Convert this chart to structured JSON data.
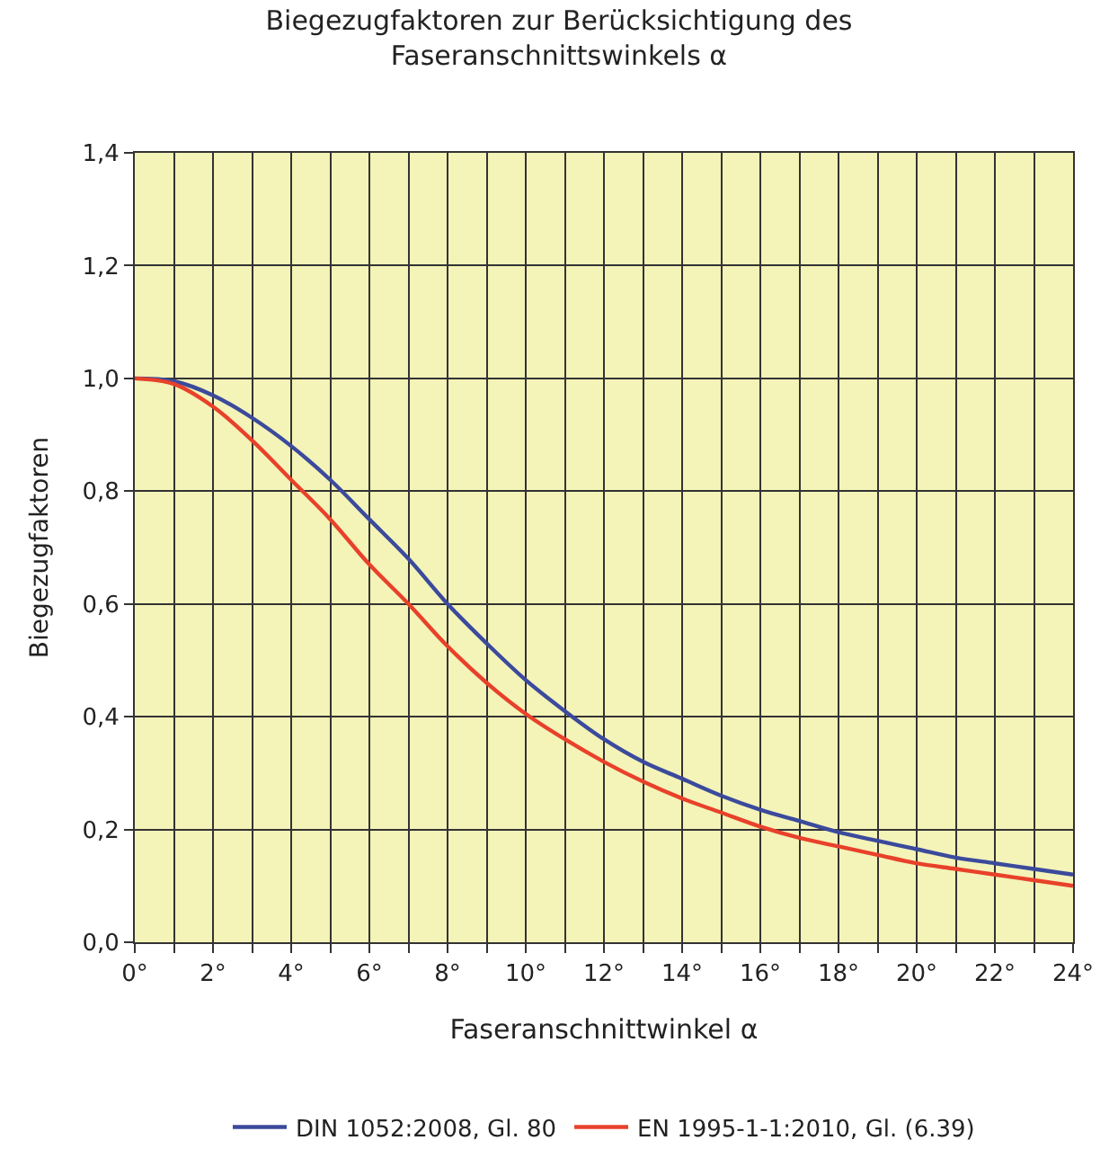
{
  "chart_data": {
    "type": "line",
    "title": "Biegezugfaktoren zur Berücksichtigung des\nFaseranschnittswinkels α",
    "xlabel": "Faseranschnittwinkel α",
    "ylabel": "Biegezugfaktoren",
    "x": [
      0,
      1,
      2,
      3,
      4,
      5,
      6,
      7,
      8,
      9,
      10,
      11,
      12,
      13,
      14,
      15,
      16,
      17,
      18,
      19,
      20,
      21,
      22,
      23,
      24
    ],
    "series": [
      {
        "name": "DIN 1052:2008, Gl. 80",
        "color": "#3b4a9c",
        "values": [
          1.0,
          0.995,
          0.97,
          0.93,
          0.88,
          0.82,
          0.75,
          0.68,
          0.6,
          0.53,
          0.465,
          0.41,
          0.36,
          0.32,
          0.29,
          0.26,
          0.235,
          0.215,
          0.195,
          0.18,
          0.165,
          0.15,
          0.14,
          0.13,
          0.12
        ]
      },
      {
        "name": "EN 1995-1-1:2010, Gl. (6.39)",
        "color": "#e8412a",
        "values": [
          1.0,
          0.99,
          0.95,
          0.89,
          0.82,
          0.75,
          0.67,
          0.6,
          0.525,
          0.46,
          0.405,
          0.36,
          0.32,
          0.285,
          0.255,
          0.23,
          0.205,
          0.185,
          0.17,
          0.155,
          0.14,
          0.13,
          0.12,
          0.11,
          0.1
        ]
      }
    ],
    "xlim": [
      0,
      24
    ],
    "xticks": [
      {
        "value": 0,
        "label": "0°"
      },
      {
        "value": 1,
        "label": null
      },
      {
        "value": 2,
        "label": "2°"
      },
      {
        "value": 3,
        "label": null
      },
      {
        "value": 4,
        "label": "4°"
      },
      {
        "value": 5,
        "label": null
      },
      {
        "value": 6,
        "label": "6°"
      },
      {
        "value": 7,
        "label": null
      },
      {
        "value": 8,
        "label": "8°"
      },
      {
        "value": 9,
        "label": null
      },
      {
        "value": 10,
        "label": "10°"
      },
      {
        "value": 11,
        "label": null
      },
      {
        "value": 12,
        "label": "12°"
      },
      {
        "value": 13,
        "label": null
      },
      {
        "value": 14,
        "label": "14°"
      },
      {
        "value": 15,
        "label": null
      },
      {
        "value": 16,
        "label": "16°"
      },
      {
        "value": 17,
        "label": null
      },
      {
        "value": 18,
        "label": "18°"
      },
      {
        "value": 19,
        "label": null
      },
      {
        "value": 20,
        "label": "20°"
      },
      {
        "value": 21,
        "label": null
      },
      {
        "value": 22,
        "label": "22°"
      },
      {
        "value": 23,
        "label": null
      },
      {
        "value": 24,
        "label": "24°"
      }
    ],
    "ylim": [
      0,
      1.4
    ],
    "yticks": [
      {
        "value": 0,
        "label": "0,0"
      },
      {
        "value": 0.2,
        "label": "0,2"
      },
      {
        "value": 0.4,
        "label": "0,4"
      },
      {
        "value": 0.6,
        "label": "0,6"
      },
      {
        "value": 0.8,
        "label": "0,8"
      },
      {
        "value": 1.0,
        "label": "1,0"
      },
      {
        "value": 1.2,
        "label": "1,2"
      },
      {
        "value": 1.4,
        "label": "1,4"
      }
    ],
    "grid": true,
    "legend": "bottom",
    "marker": "none",
    "line_style": "solid"
  }
}
